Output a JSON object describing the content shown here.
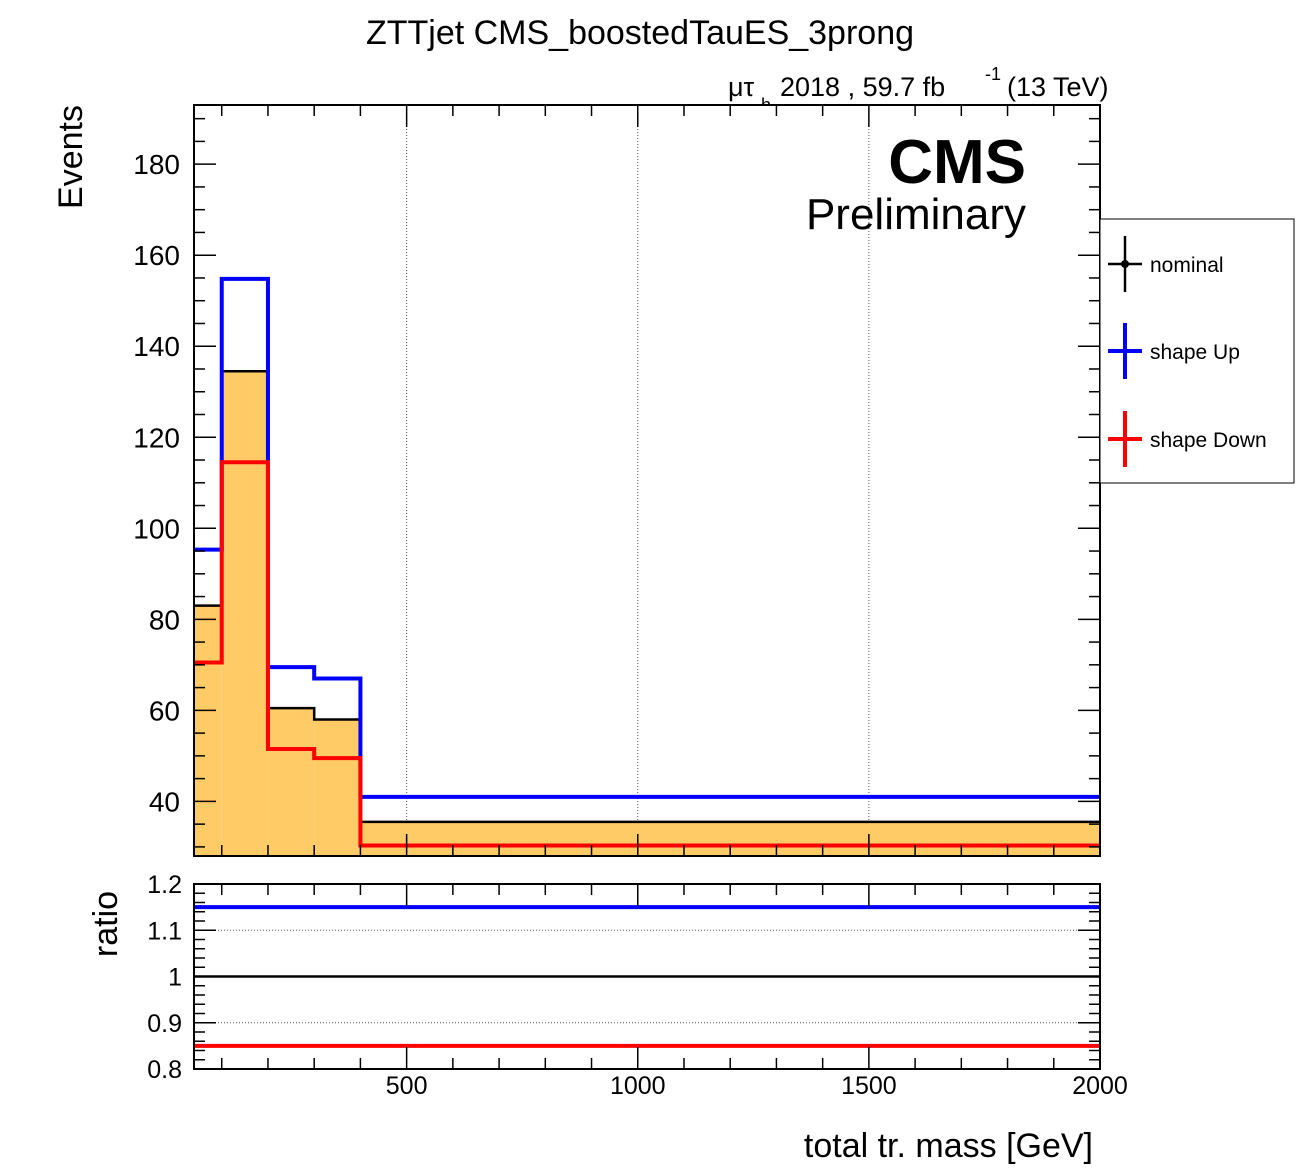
{
  "chart_data": [
    {
      "type": "step-histogram",
      "title": "ZTTjet CMS_boostedTauES_3prong",
      "lumi_label": {
        "channel_main": "μτ",
        "channel_sub": "h",
        "text": "2018 , 59.7 fb",
        "sup": "-1",
        "energy": "(13 TeV)"
      },
      "cms_label": "CMS",
      "preliminary_label": "Preliminary",
      "ylabel": "Events",
      "xlabel": "",
      "xlim": [
        40,
        2000
      ],
      "ylim": [
        28,
        193
      ],
      "y_ticks": [
        40,
        60,
        80,
        100,
        120,
        140,
        160,
        180
      ],
      "x_grid": [
        500,
        1000,
        1500
      ],
      "bin_edges": [
        40,
        100,
        200,
        300,
        400,
        2000
      ],
      "series": [
        {
          "name": "nominal",
          "color": "#000000",
          "fill": "#ffcb66",
          "values": [
            83,
            134.5,
            60.5,
            58,
            35.5
          ]
        },
        {
          "name": "shape Up",
          "color": "#0000ff",
          "values": [
            95.3,
            154.8,
            69.5,
            67,
            41
          ]
        },
        {
          "name": "shape Down",
          "color": "#ff0000",
          "values": [
            70.5,
            114.5,
            51.5,
            49.5,
            30.3
          ]
        }
      ],
      "legend": {
        "placement": "right",
        "entries": [
          "nominal",
          "shape Up",
          "shape Down"
        ]
      }
    },
    {
      "type": "line",
      "ylabel": "ratio",
      "xlabel": "total tr. mass [GeV]",
      "xlim": [
        40,
        2000
      ],
      "ylim": [
        0.8,
        1.2
      ],
      "y_ticks": [
        "0.8",
        "0.9",
        "1",
        "1.1",
        "1.2"
      ],
      "x_ticks": [
        "500",
        "1000",
        "1500",
        "2000"
      ],
      "x_tick_values": [
        500,
        1000,
        1500,
        2000
      ],
      "series": [
        {
          "name": "shape Up",
          "color": "#0000ff",
          "value": 1.15
        },
        {
          "name": "nominal",
          "color": "#000000",
          "value": 1.0
        },
        {
          "name": "shape Down",
          "color": "#ff0000",
          "value": 0.85
        }
      ]
    }
  ]
}
